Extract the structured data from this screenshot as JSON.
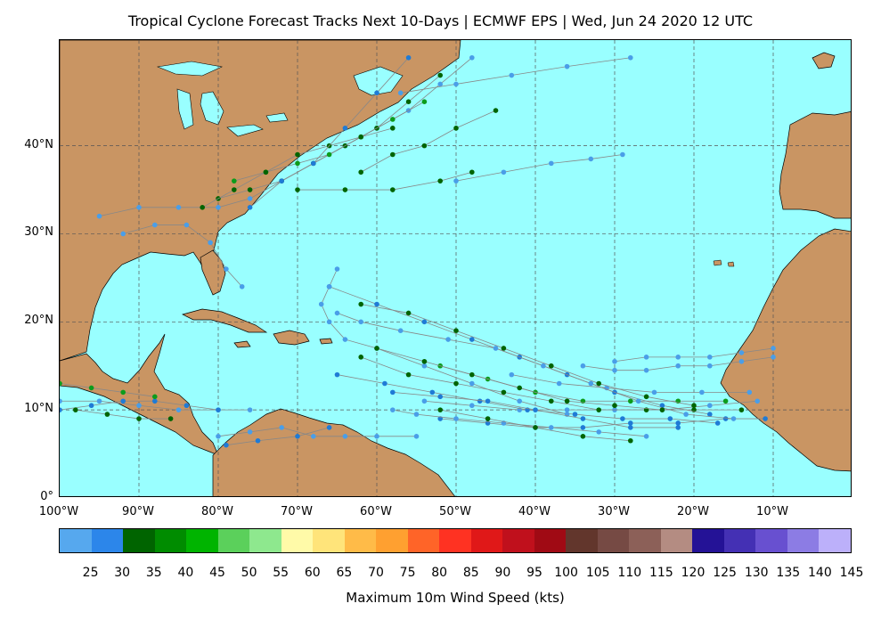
{
  "title": "Tropical Cyclone Forecast Tracks Next 10-Days | ECMWF EPS | Wed, Jun 24 2020 12 UTC",
  "map": {
    "projection": "equirectangular",
    "lon_range": [
      -100,
      0
    ],
    "lat_range": [
      0,
      52
    ],
    "ocean_color": "#99ffff",
    "land_color": "#c99563",
    "grid": "on",
    "lat_labels": [
      {
        "lat": 40,
        "text": "40°N"
      },
      {
        "lat": 30,
        "text": "30°N"
      },
      {
        "lat": 20,
        "text": "20°N"
      },
      {
        "lat": 10,
        "text": "10°N"
      },
      {
        "lat": 0,
        "text": "0°"
      }
    ],
    "lon_labels": [
      {
        "lon": -100,
        "text": "100°W"
      },
      {
        "lon": -90,
        "text": "90°W"
      },
      {
        "lon": -80,
        "text": "80°W"
      },
      {
        "lon": -70,
        "text": "70°W"
      },
      {
        "lon": -60,
        "text": "60°W"
      },
      {
        "lon": -50,
        "text": "50°W"
      },
      {
        "lon": -40,
        "text": "40°W"
      },
      {
        "lon": -30,
        "text": "30°W"
      },
      {
        "lon": -20,
        "text": "20°W"
      },
      {
        "lon": -10,
        "text": "10°W"
      }
    ]
  },
  "tracks": [
    {
      "color": "#4a9ee8",
      "points": [
        [
          -100,
          11
        ],
        [
          -95,
          11
        ],
        [
          -90,
          10.5
        ],
        [
          -85,
          10
        ],
        [
          -80,
          10
        ],
        [
          -76,
          10
        ]
      ]
    },
    {
      "color": "#1f7bd6",
      "points": [
        [
          -100,
          10
        ],
        [
          -96,
          10.5
        ],
        [
          -92,
          11
        ],
        [
          -88,
          11
        ],
        [
          -84,
          10.5
        ],
        [
          -80,
          10
        ]
      ]
    },
    {
      "color": "#0c9c1b",
      "points": [
        [
          -100,
          13
        ],
        [
          -96,
          12.5
        ],
        [
          -92,
          12
        ],
        [
          -88,
          11.5
        ]
      ]
    },
    {
      "color": "#006400",
      "points": [
        [
          -98,
          10
        ],
        [
          -94,
          9.5
        ],
        [
          -90,
          9
        ],
        [
          -86,
          9
        ]
      ]
    },
    {
      "color": "#4a9ee8",
      "points": [
        [
          -80,
          7
        ],
        [
          -76,
          7.5
        ],
        [
          -72,
          8
        ],
        [
          -68,
          7
        ],
        [
          -64,
          7
        ],
        [
          -60,
          7
        ],
        [
          -55,
          7
        ]
      ]
    },
    {
      "color": "#1f7bd6",
      "points": [
        [
          -79,
          6
        ],
        [
          -75,
          6.5
        ],
        [
          -70,
          7
        ],
        [
          -66,
          8
        ]
      ]
    },
    {
      "color": "#4a9ee8",
      "points": [
        [
          -95,
          32
        ],
        [
          -90,
          33
        ],
        [
          -85,
          33
        ],
        [
          -80,
          33
        ],
        [
          -76,
          34
        ],
        [
          -72,
          36
        ],
        [
          -68,
          38
        ],
        [
          -64,
          40
        ],
        [
          -60,
          42
        ],
        [
          -56,
          44
        ],
        [
          -52,
          47
        ],
        [
          -48,
          50
        ]
      ]
    },
    {
      "color": "#006400",
      "points": [
        [
          -80,
          34
        ],
        [
          -76,
          35
        ],
        [
          -72,
          36
        ],
        [
          -68,
          38
        ],
        [
          -64,
          40
        ],
        [
          -60,
          42
        ],
        [
          -56,
          45
        ],
        [
          -52,
          48
        ]
      ]
    },
    {
      "color": "#0c9c1b",
      "points": [
        [
          -78,
          36
        ],
        [
          -74,
          37
        ],
        [
          -70,
          38
        ],
        [
          -66,
          39
        ],
        [
          -62,
          41
        ],
        [
          -58,
          43
        ],
        [
          -54,
          45
        ]
      ]
    },
    {
      "color": "#006400",
      "points": [
        [
          -82,
          33
        ],
        [
          -78,
          35
        ],
        [
          -74,
          37
        ],
        [
          -70,
          39
        ],
        [
          -66,
          40
        ],
        [
          -62,
          41
        ],
        [
          -58,
          42
        ]
      ]
    },
    {
      "color": "#4a9ee8",
      "points": [
        [
          -92,
          30
        ],
        [
          -88,
          31
        ],
        [
          -84,
          31
        ],
        [
          -81,
          29
        ],
        [
          -79,
          26
        ],
        [
          -77,
          24
        ]
      ]
    },
    {
      "color": "#1f7bd6",
      "points": [
        [
          -76,
          33
        ],
        [
          -72,
          36
        ],
        [
          -68,
          38
        ],
        [
          -64,
          42
        ],
        [
          -60,
          46
        ],
        [
          -56,
          50
        ]
      ]
    },
    {
      "color": "#4a9ee8",
      "points": [
        [
          -50,
          36
        ],
        [
          -44,
          37
        ],
        [
          -38,
          38
        ],
        [
          -33,
          38.5
        ],
        [
          -29,
          39
        ]
      ]
    },
    {
      "color": "#4a9ee8",
      "points": [
        [
          -57,
          46
        ],
        [
          -50,
          47
        ],
        [
          -43,
          48
        ],
        [
          -36,
          49
        ],
        [
          -28,
          50
        ]
      ]
    },
    {
      "color": "#006400",
      "points": [
        [
          -70,
          35
        ],
        [
          -64,
          35
        ],
        [
          -58,
          35
        ],
        [
          -52,
          36
        ],
        [
          -48,
          37
        ]
      ]
    },
    {
      "color": "#006400",
      "points": [
        [
          -62,
          37
        ],
        [
          -58,
          39
        ],
        [
          -54,
          40
        ],
        [
          -50,
          42
        ],
        [
          -45,
          44
        ]
      ]
    },
    {
      "color": "#4a9ee8",
      "points": [
        [
          -10,
          16
        ],
        [
          -14,
          15.5
        ],
        [
          -18,
          15
        ],
        [
          -22,
          15
        ],
        [
          -26,
          14.5
        ],
        [
          -30,
          14.5
        ],
        [
          -34,
          15
        ]
      ]
    },
    {
      "color": "#4a9ee8",
      "points": [
        [
          -10,
          17
        ],
        [
          -14,
          16.5
        ],
        [
          -18,
          16
        ],
        [
          -22,
          16
        ],
        [
          -26,
          16
        ],
        [
          -30,
          15.5
        ]
      ]
    },
    {
      "color": "#4a9ee8",
      "points": [
        [
          -12,
          11
        ],
        [
          -18,
          10.5
        ],
        [
          -24,
          10
        ],
        [
          -30,
          10
        ],
        [
          -36,
          10
        ],
        [
          -42,
          10
        ],
        [
          -48,
          10.5
        ],
        [
          -54,
          11
        ]
      ]
    },
    {
      "color": "#1f7bd6",
      "points": [
        [
          -11,
          9
        ],
        [
          -16,
          9
        ],
        [
          -22,
          8.5
        ],
        [
          -28,
          8.5
        ],
        [
          -34,
          8
        ],
        [
          -40,
          8
        ],
        [
          -46,
          8.5
        ],
        [
          -52,
          9
        ]
      ]
    },
    {
      "color": "#006400",
      "points": [
        [
          -14,
          10
        ],
        [
          -20,
          10
        ],
        [
          -26,
          10
        ],
        [
          -32,
          10
        ],
        [
          -38,
          11
        ],
        [
          -44,
          12
        ],
        [
          -50,
          13
        ],
        [
          -56,
          14
        ],
        [
          -62,
          16
        ]
      ]
    },
    {
      "color": "#0c9c1b",
      "points": [
        [
          -16,
          11
        ],
        [
          -22,
          11
        ],
        [
          -28,
          11
        ],
        [
          -34,
          11
        ],
        [
          -40,
          12
        ],
        [
          -46,
          13.5
        ],
        [
          -52,
          15
        ]
      ]
    },
    {
      "color": "#4a9ee8",
      "points": [
        [
          -13,
          12
        ],
        [
          -19,
          12
        ],
        [
          -25,
          12
        ],
        [
          -31,
          12.5
        ],
        [
          -37,
          13
        ],
        [
          -43,
          14
        ]
      ]
    },
    {
      "color": "#006400",
      "points": [
        [
          -20,
          10.5
        ],
        [
          -26,
          11.5
        ],
        [
          -32,
          13
        ],
        [
          -38,
          15
        ],
        [
          -44,
          17
        ],
        [
          -50,
          19
        ],
        [
          -56,
          21
        ],
        [
          -62,
          22
        ]
      ]
    },
    {
      "color": "#1f7bd6",
      "points": [
        [
          -18,
          9.5
        ],
        [
          -24,
          10.5
        ],
        [
          -30,
          12
        ],
        [
          -36,
          14
        ],
        [
          -42,
          16
        ],
        [
          -48,
          18
        ],
        [
          -54,
          20
        ],
        [
          -60,
          22
        ],
        [
          -66,
          24
        ]
      ]
    },
    {
      "color": "#4a9ee8",
      "points": [
        [
          -15,
          9
        ],
        [
          -21,
          9.5
        ],
        [
          -27,
          11
        ],
        [
          -33,
          13
        ],
        [
          -39,
          15
        ],
        [
          -45,
          17
        ],
        [
          -51,
          18
        ],
        [
          -57,
          19
        ],
        [
          -62,
          20
        ],
        [
          -65,
          21
        ]
      ]
    },
    {
      "color": "#1f7bd6",
      "points": [
        [
          -17,
          8.5
        ],
        [
          -23,
          9
        ],
        [
          -29,
          9
        ],
        [
          -35,
          9.5
        ],
        [
          -41,
          10
        ],
        [
          -47,
          11
        ],
        [
          -53,
          12
        ],
        [
          -59,
          13
        ],
        [
          -65,
          14
        ]
      ]
    },
    {
      "color": "#4a9ee8",
      "points": [
        [
          -36,
          9.5
        ],
        [
          -42,
          11
        ],
        [
          -48,
          13
        ],
        [
          -54,
          15
        ],
        [
          -60,
          17
        ],
        [
          -64,
          18
        ],
        [
          -66,
          20
        ],
        [
          -67,
          22
        ],
        [
          -66,
          24
        ],
        [
          -65,
          26
        ]
      ]
    },
    {
      "color": "#006400",
      "points": [
        [
          -24,
          10
        ],
        [
          -30,
          10.5
        ],
        [
          -36,
          11
        ],
        [
          -42,
          12.5
        ],
        [
          -48,
          14
        ],
        [
          -54,
          15.5
        ],
        [
          -60,
          17
        ]
      ]
    },
    {
      "color": "#1f7bd6",
      "points": [
        [
          -22,
          8
        ],
        [
          -28,
          8
        ],
        [
          -34,
          9
        ],
        [
          -40,
          10
        ],
        [
          -46,
          11
        ],
        [
          -52,
          11.5
        ],
        [
          -58,
          12
        ]
      ]
    },
    {
      "color": "#4a9ee8",
      "points": [
        [
          -26,
          7
        ],
        [
          -32,
          7.5
        ],
        [
          -38,
          8
        ],
        [
          -44,
          8.5
        ],
        [
          -50,
          9
        ],
        [
          -55,
          9.5
        ],
        [
          -58,
          10
        ]
      ]
    },
    {
      "color": "#006400",
      "points": [
        [
          -28,
          6.5
        ],
        [
          -34,
          7
        ],
        [
          -40,
          8
        ],
        [
          -46,
          9
        ],
        [
          -52,
          10
        ]
      ]
    }
  ],
  "colorbar": {
    "title": "Maximum 10m Wind Speed (kts)",
    "colors": [
      "#56a8ee",
      "#2c86ea",
      "#006400",
      "#008c00",
      "#00b400",
      "#5bd05b",
      "#8ee88e",
      "#fffaa8",
      "#ffe47a",
      "#ffbb48",
      "#ffa030",
      "#ff6428",
      "#ff3222",
      "#e01818",
      "#c0101c",
      "#a00a14",
      "#62362c",
      "#764a44",
      "#8c6058",
      "#b48c82",
      "#241296",
      "#4430b4",
      "#6850d0",
      "#8c7ce4",
      "#bcb0fa"
    ],
    "ticks": [
      "25",
      "30",
      "35",
      "40",
      "45",
      "50",
      "55",
      "60",
      "65",
      "70",
      "75",
      "80",
      "85",
      "90",
      "95",
      "100",
      "105",
      "110",
      "115",
      "120",
      "125",
      "130",
      "135",
      "140",
      "145"
    ]
  }
}
